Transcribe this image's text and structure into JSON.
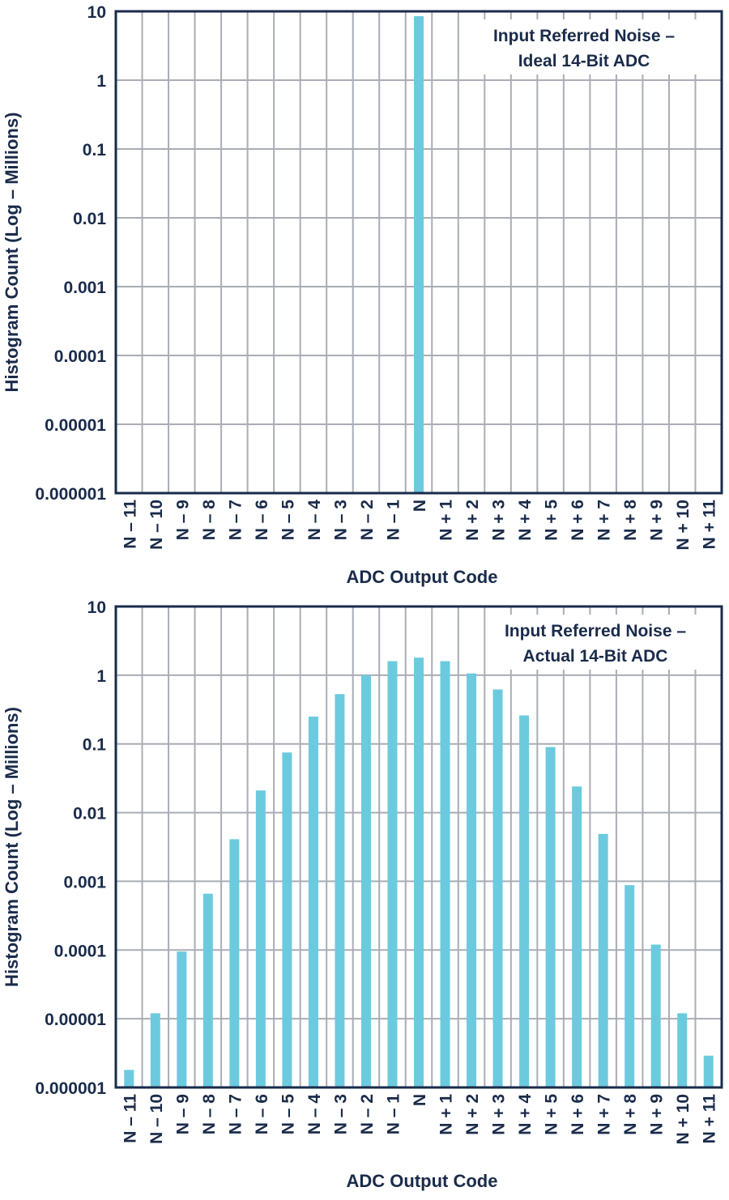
{
  "colors": {
    "bar": "#6ccadf",
    "grid": "#a9adb5",
    "frame": "#1a2b4a",
    "text": "#1a2b4a"
  },
  "chart_data": [
    {
      "type": "bar",
      "yscale": "log",
      "ylim": [
        1e-06,
        10
      ],
      "yticks": [
        "10",
        "1",
        "0.1",
        "0.01",
        "0.001",
        "0.0001",
        "0.00001",
        "0.000001"
      ],
      "ylabel": "Histogram Count (Log – Millions)",
      "xlabel": "ADC Output Code",
      "annotation": [
        "Input Referred Noise –",
        "Ideal 14-Bit ADC"
      ],
      "grid": true,
      "categories": [
        "N – 11",
        "N – 10",
        "N – 9",
        "N – 8",
        "N – 7",
        "N – 6",
        "N – 5",
        "N – 4",
        "N – 3",
        "N – 2",
        "N – 1",
        "N",
        "N + 1",
        "N + 2",
        "N + 3",
        "N + 4",
        "N + 5",
        "N + 6",
        "N + 7",
        "N + 8",
        "N + 9",
        "N + 10",
        "N + 11"
      ],
      "values": [
        null,
        null,
        null,
        null,
        null,
        null,
        null,
        null,
        null,
        null,
        null,
        8.5,
        null,
        null,
        null,
        null,
        null,
        null,
        null,
        null,
        null,
        null,
        null
      ]
    },
    {
      "type": "bar",
      "yscale": "log",
      "ylim": [
        1e-06,
        10
      ],
      "yticks": [
        "10",
        "1",
        "0.1",
        "0.01",
        "0.001",
        "0.0001",
        "0.00001",
        "0.000001"
      ],
      "ylabel": "Histogram Count (Log – Millions)",
      "xlabel": "ADC Output Code",
      "annotation": [
        "Input Referred Noise –",
        "Actual 14-Bit ADC"
      ],
      "grid": true,
      "categories": [
        "N – 11",
        "N – 10",
        "N – 9",
        "N – 8",
        "N – 7",
        "N – 6",
        "N – 5",
        "N – 4",
        "N – 3",
        "N – 2",
        "N – 1",
        "N",
        "N + 1",
        "N + 2",
        "N + 3",
        "N + 4",
        "N + 5",
        "N + 6",
        "N + 7",
        "N + 8",
        "N + 9",
        "N + 10",
        "N + 11"
      ],
      "values": [
        1.8e-06,
        1.2e-05,
        9.5e-05,
        0.00066,
        0.0041,
        0.021,
        0.075,
        0.25,
        0.53,
        1.0,
        1.6,
        1.8,
        1.6,
        1.06,
        0.62,
        0.26,
        0.09,
        0.024,
        0.0049,
        0.00088,
        0.00012,
        1.2e-05,
        2.9e-06
      ]
    }
  ]
}
